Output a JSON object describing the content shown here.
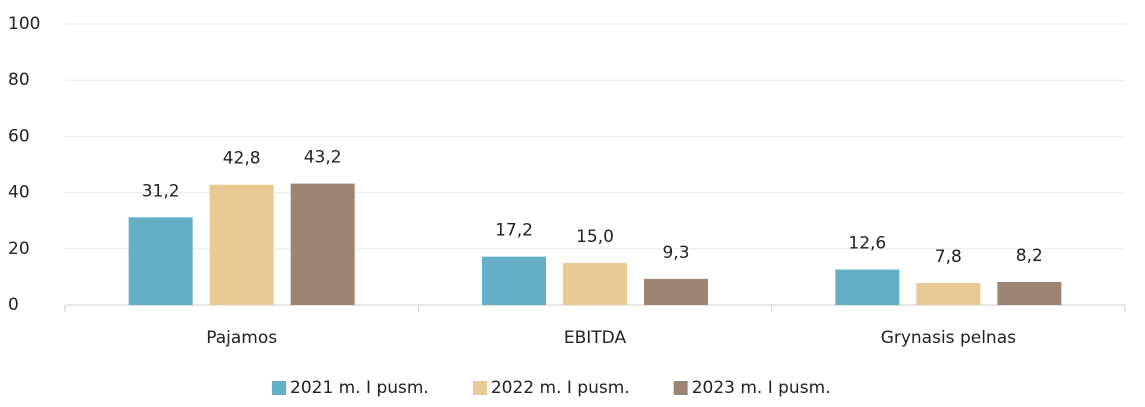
{
  "chart_data": {
    "type": "bar",
    "categories": [
      "Pajamos",
      "EBITDA",
      "Grynasis pelnas"
    ],
    "series": [
      {
        "name": "2021 m. I pusm.",
        "color": "#62afc6",
        "values": [
          31.2,
          17.2,
          12.6
        ],
        "value_labels": [
          "31,2",
          "17,2",
          "12,6"
        ]
      },
      {
        "name": "2022 m. I pusm.",
        "color": "#e9c994",
        "values": [
          42.8,
          15.0,
          7.8
        ],
        "value_labels": [
          "42,8",
          "15,0",
          "7,8"
        ]
      },
      {
        "name": "2023 m. I pusm.",
        "color": "#9c8575",
        "values": [
          43.2,
          9.3,
          8.2
        ],
        "value_labels": [
          "43,2",
          "9,3",
          "8,2"
        ]
      }
    ],
    "ylim": [
      0,
      100
    ],
    "yticks": [
      0,
      20,
      40,
      60,
      80,
      100
    ],
    "grid": true,
    "legend": "bottom"
  }
}
